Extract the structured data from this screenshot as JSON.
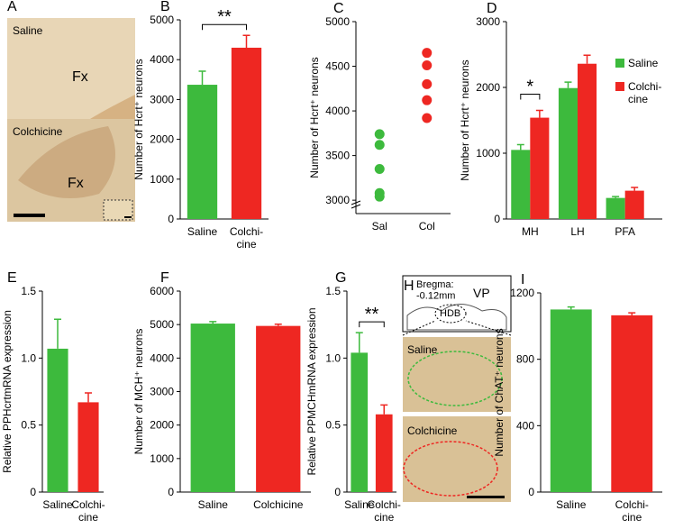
{
  "chart_data": [
    {
      "panel": "B",
      "type": "bar",
      "ylabel": "Number of Hcrt⁺ neurons",
      "categories": [
        "Saline",
        "Colchi-\ncine"
      ],
      "values": [
        3370,
        4300
      ],
      "errors": [
        340,
        310
      ],
      "colors": [
        "#3dba3d",
        "#ee2722"
      ],
      "ylim": [
        0,
        5000
      ],
      "yticks": [
        0,
        1000,
        2000,
        3000,
        4000,
        5000
      ],
      "annotation": "**"
    },
    {
      "panel": "C",
      "type": "strip",
      "ylabel": "Number of Hcrt⁺ neurons",
      "categories": [
        "Sal",
        "Col"
      ],
      "series": [
        {
          "color": "#3dba3d",
          "values": [
            3740,
            3620,
            3350,
            3080,
            3040
          ]
        },
        {
          "color": "#ee2722",
          "values": [
            4650,
            4510,
            4300,
            4120,
            3920
          ]
        }
      ],
      "ylim": [
        2850,
        5000
      ],
      "yticks": [
        3000,
        3500,
        4000,
        4500,
        5000
      ]
    },
    {
      "panel": "D",
      "type": "grouped-bar",
      "ylabel": "Number of Hcrt⁺ neurons",
      "categories": [
        "MH",
        "LH",
        "PFA"
      ],
      "series": [
        {
          "name": "Saline",
          "color": "#3dba3d",
          "values": [
            1050,
            1990,
            320
          ],
          "errors": [
            80,
            90,
            20
          ]
        },
        {
          "name": "Colchi-\ncine",
          "color": "#ee2722",
          "values": [
            1540,
            2360,
            430
          ],
          "errors": [
            110,
            130,
            50
          ]
        }
      ],
      "ylim": [
        0,
        3000
      ],
      "yticks": [
        0,
        1000,
        2000,
        3000
      ],
      "annotation": "*"
    },
    {
      "panel": "E",
      "type": "bar",
      "ylabel": "Relative PPHcrtmRNA expression",
      "categories": [
        "Saline",
        "Colchi-\ncine"
      ],
      "values": [
        1.07,
        0.67
      ],
      "errors": [
        0.22,
        0.07
      ],
      "colors": [
        "#3dba3d",
        "#ee2722"
      ],
      "ylim": [
        0,
        1.5
      ],
      "yticks": [
        0,
        0.5,
        {
          "value": 1,
          "label": "1.0"
        },
        1.5
      ]
    },
    {
      "panel": "F",
      "type": "bar",
      "ylabel": "Number of MCH⁺ neurons",
      "categories": [
        "Saline",
        "Colchicine"
      ],
      "values": [
        5030,
        4960
      ],
      "errors": [
        60,
        50
      ],
      "colors": [
        "#3dba3d",
        "#ee2722"
      ],
      "ylim": [
        0,
        6000
      ],
      "yticks": [
        0,
        1000,
        2000,
        3000,
        4000,
        5000,
        6000
      ]
    },
    {
      "panel": "G",
      "type": "bar",
      "ylabel": "Relative PPMCHmRNA expression",
      "categories": [
        "Saline",
        "Colchi-\ncine"
      ],
      "values": [
        1.04,
        0.58
      ],
      "errors": [
        0.15,
        0.07
      ],
      "colors": [
        "#3dba3d",
        "#ee2722"
      ],
      "ylim": [
        0,
        1.5
      ],
      "yticks": [
        0,
        0.5,
        {
          "value": 1,
          "label": "1.0"
        },
        1.5
      ],
      "annotation": "**"
    },
    {
      "panel": "I",
      "type": "bar",
      "ylabel": "Number of ChAT⁺ neurons",
      "categories": [
        "Saline",
        "Colchi-\ncine"
      ],
      "values": [
        1100,
        1065
      ],
      "errors": [
        15,
        15
      ],
      "colors": [
        "#3dba3d",
        "#ee2722"
      ],
      "ylim": [
        0,
        1200
      ],
      "yticks": [
        0,
        400,
        800,
        1200
      ]
    }
  ],
  "images": [
    {
      "panel": "A",
      "labels": [
        "Saline",
        "Fx",
        "Colchicine",
        "Fx"
      ]
    },
    {
      "panel": "H",
      "labels": [
        "Bregma:\n-0.12mm",
        "VP",
        "HDB",
        "Saline",
        "Colchicine"
      ]
    }
  ]
}
